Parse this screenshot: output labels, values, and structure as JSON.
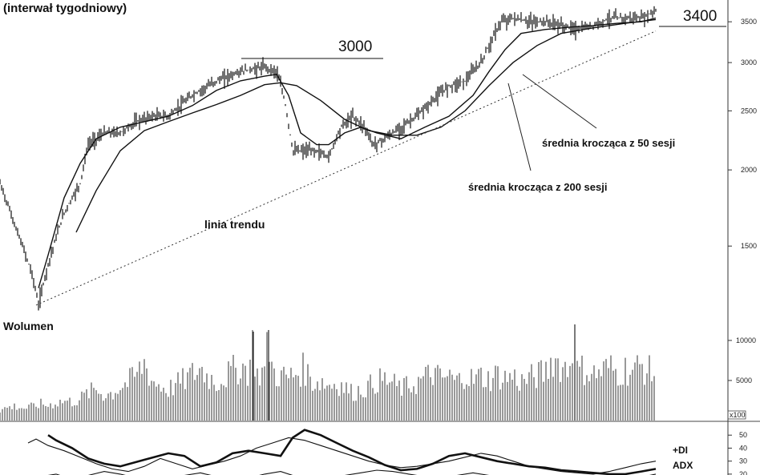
{
  "chart_data": [
    {
      "type": "line",
      "title": "(interwał tygodniowy)",
      "yscale": "log",
      "ylim": [
        1150,
        3800
      ],
      "yticks": [
        1500,
        2000,
        2500,
        3000,
        3500
      ],
      "ytick_labels": [
        "1500",
        "2000",
        "2500",
        "3000",
        "3500"
      ],
      "xlim": [
        0,
        820
      ],
      "series": [
        {
          "name": "",
          "kind": "price-bars",
          "x": [
            0,
            20,
            40,
            48,
            60,
            80,
            100,
            110,
            130,
            150,
            170,
            190,
            210,
            240,
            270,
            300,
            330,
            345,
            355,
            365,
            375,
            395,
            410,
            425,
            440,
            455,
            465,
            480,
            500,
            520,
            540,
            560,
            580,
            600,
            615,
            625,
            640,
            660,
            680,
            700,
            720,
            740,
            760,
            780,
            800,
            818
          ],
          "y": [
            1900,
            1600,
            1350,
            1200,
            1400,
            1700,
            1900,
            2200,
            2300,
            2300,
            2400,
            2450,
            2450,
            2650,
            2800,
            2900,
            2950,
            2900,
            2600,
            2150,
            2150,
            2150,
            2100,
            2350,
            2450,
            2350,
            2200,
            2250,
            2350,
            2450,
            2600,
            2750,
            2800,
            3000,
            3300,
            3500,
            3550,
            3500,
            3500,
            3450,
            3400,
            3450,
            3550,
            3550,
            3550,
            3650
          ]
        },
        {
          "name": "średnia krocząca z 50 sesji",
          "kind": "line",
          "x": [
            48,
            60,
            80,
            100,
            120,
            150,
            180,
            210,
            240,
            270,
            300,
            330,
            345,
            360,
            375,
            395,
            410,
            430,
            450,
            470,
            500,
            530,
            560,
            590,
            610,
            630,
            650,
            680,
            710,
            740,
            770,
            800,
            818
          ],
          "y": [
            1280,
            1450,
            1800,
            2050,
            2250,
            2350,
            2400,
            2450,
            2550,
            2700,
            2800,
            2850,
            2870,
            2650,
            2300,
            2200,
            2200,
            2300,
            2350,
            2300,
            2250,
            2350,
            2450,
            2650,
            2900,
            3150,
            3350,
            3400,
            3430,
            3450,
            3480,
            3500,
            3550
          ]
        },
        {
          "name": "średnia krocząca z 200 sesji",
          "kind": "line",
          "x": [
            95,
            120,
            150,
            180,
            210,
            240,
            270,
            300,
            330,
            350,
            370,
            400,
            430,
            460,
            490,
            520,
            550,
            580,
            610,
            640,
            670,
            700,
            740,
            780,
            818
          ],
          "y": [
            1580,
            1850,
            2150,
            2320,
            2400,
            2480,
            2560,
            2650,
            2760,
            2780,
            2750,
            2600,
            2420,
            2320,
            2280,
            2280,
            2350,
            2500,
            2750,
            3000,
            3200,
            3350,
            3420,
            3480,
            3530
          ]
        }
      ],
      "annotations": [
        {
          "text": "3000",
          "value": 3000
        },
        {
          "text": "3400",
          "value": 3400
        },
        {
          "text": "linia trendu"
        },
        {
          "text": "średnia krocząca z 50 sesji"
        },
        {
          "text": "średnia krocząca z 200 sesji"
        }
      ],
      "trendline": {
        "label": "linia trendu",
        "x": [
          45,
          818
        ],
        "y": [
          1200,
          3380
        ]
      }
    },
    {
      "type": "bar",
      "title": "Wolumen",
      "ylim": [
        0,
        12500
      ],
      "yticks": [
        5000,
        10000
      ],
      "ytick_labels": [
        "5000",
        "10000"
      ],
      "unit_label": "x100",
      "x": [
        0,
        10,
        20,
        30,
        40,
        50,
        60,
        70,
        80,
        90,
        100,
        110,
        120,
        130,
        140,
        150,
        160,
        170,
        180,
        190,
        200,
        210,
        220,
        230,
        240,
        250,
        260,
        270,
        280,
        290,
        300,
        310,
        316,
        320,
        330,
        335,
        340,
        350,
        360,
        370,
        380,
        390,
        400,
        410,
        420,
        430,
        440,
        450,
        460,
        470,
        480,
        490,
        500,
        510,
        520,
        530,
        540,
        550,
        560,
        570,
        580,
        590,
        600,
        610,
        620,
        630,
        640,
        650,
        660,
        670,
        680,
        690,
        700,
        710,
        717,
        720,
        730,
        740,
        750,
        760,
        770,
        780,
        790,
        800,
        810,
        818
      ],
      "values": [
        1500,
        1800,
        2000,
        1700,
        1900,
        2300,
        2100,
        2500,
        2700,
        2600,
        3000,
        3800,
        4300,
        3600,
        3800,
        4700,
        5300,
        6200,
        8000,
        5500,
        4800,
        4300,
        5000,
        5600,
        6400,
        7200,
        6100,
        5300,
        6000,
        6800,
        7600,
        6900,
        11100,
        6200,
        7000,
        11300,
        6700,
        6200,
        5900,
        6600,
        7200,
        5400,
        5500,
        4900,
        5300,
        4600,
        3800,
        4300,
        4700,
        5500,
        5600,
        5100,
        4400,
        4800,
        5200,
        5900,
        6600,
        5700,
        6100,
        5300,
        6700,
        5500,
        6200,
        5700,
        6400,
        5900,
        6100,
        5400,
        5800,
        6300,
        6600,
        8800,
        7500,
        7100,
        12000,
        6800,
        7200,
        6400,
        6800,
        7400,
        6600,
        7100,
        6900,
        7600,
        6800,
        6500
      ]
    },
    {
      "type": "line",
      "title": "",
      "ylim": [
        15,
        60
      ],
      "yticks": [
        20,
        30,
        40,
        50
      ],
      "ytick_labels": [
        "20",
        "30",
        "40",
        "50"
      ],
      "legend": [
        "+DI",
        "ADX"
      ],
      "series": [
        {
          "name": "+DI",
          "kind": "line-thin",
          "x": [
            35,
            45,
            60,
            80,
            100,
            120,
            140,
            160,
            180,
            200,
            220,
            240,
            260,
            280,
            300,
            320,
            340,
            360,
            380,
            400,
            420,
            440,
            460,
            480,
            500,
            520,
            540,
            560,
            580,
            600,
            620,
            640,
            660,
            680,
            700,
            720,
            740,
            760,
            780,
            800,
            818
          ],
          "y": [
            44,
            47,
            42,
            38,
            33,
            28,
            24,
            22,
            26,
            32,
            28,
            24,
            27,
            30,
            34,
            40,
            44,
            48,
            46,
            42,
            38,
            34,
            30,
            27,
            25,
            26,
            28,
            30,
            33,
            36,
            34,
            30,
            26,
            24,
            22,
            21,
            20,
            22,
            25,
            28,
            30
          ]
        },
        {
          "name": "ADX",
          "kind": "line-thick",
          "x": [
            60,
            70,
            90,
            110,
            130,
            150,
            180,
            210,
            230,
            250,
            270,
            290,
            310,
            330,
            350,
            365,
            380,
            400,
            420,
            440,
            460,
            480,
            500,
            520,
            540,
            560,
            580,
            600,
            620,
            640,
            660,
            680,
            700,
            720,
            740,
            760,
            780,
            800,
            818
          ],
          "y": [
            50,
            46,
            40,
            32,
            28,
            26,
            31,
            36,
            34,
            26,
            29,
            36,
            38,
            36,
            34,
            48,
            54,
            50,
            44,
            38,
            33,
            27,
            23,
            24,
            28,
            34,
            36,
            33,
            30,
            28,
            26,
            25,
            23,
            22,
            21,
            20,
            20,
            22,
            24
          ]
        },
        {
          "name": "",
          "kind": "line-thin",
          "x": [
            50,
            70,
            90,
            110,
            130,
            150,
            170,
            190,
            210,
            230,
            250,
            270,
            290,
            310,
            330,
            350,
            370,
            390,
            410,
            430,
            450,
            470,
            490,
            510,
            530,
            550,
            570,
            590,
            610,
            630,
            650,
            670,
            690,
            710,
            730,
            750,
            770,
            790,
            810,
            818
          ],
          "y": [
            18,
            20,
            16,
            19,
            22,
            20,
            17,
            16,
            18,
            19,
            21,
            18,
            16,
            17,
            20,
            22,
            18,
            16,
            17,
            19,
            21,
            23,
            22,
            20,
            18,
            17,
            19,
            21,
            19,
            17,
            15,
            16,
            18,
            17,
            16,
            15,
            17,
            18,
            19,
            20
          ]
        }
      ]
    }
  ]
}
